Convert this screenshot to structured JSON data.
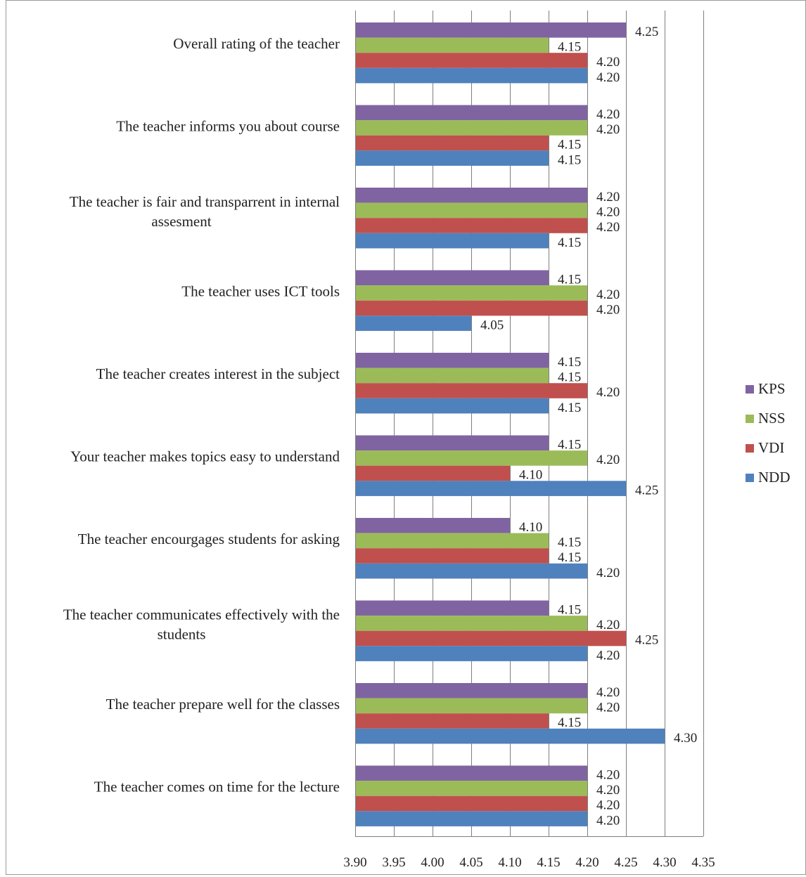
{
  "chart_data": {
    "type": "bar",
    "orientation": "horizontal",
    "categories": [
      "Overall rating of the teacher",
      "The teacher informs you about course",
      "The teacher is fair and transparrent in internal assesment",
      "The teacher uses ICT tools",
      "The teacher creates interest in the subject",
      "Your teacher makes topics easy to understand",
      "The teacher encourgages students for asking",
      "The teacher communicates effectively with the students",
      "The teacher prepare well for the classes",
      "The teacher comes on time for the lecture"
    ],
    "series": [
      {
        "name": "KPS",
        "color": "#8064a2",
        "values": [
          4.25,
          4.2,
          4.2,
          4.15,
          4.15,
          4.15,
          4.1,
          4.15,
          4.2,
          4.2
        ]
      },
      {
        "name": "NSS",
        "color": "#9bbb59",
        "values": [
          4.15,
          4.2,
          4.2,
          4.2,
          4.15,
          4.2,
          4.15,
          4.2,
          4.2,
          4.2
        ]
      },
      {
        "name": "VDI",
        "color": "#c0504d",
        "values": [
          4.2,
          4.15,
          4.2,
          4.2,
          4.2,
          4.1,
          4.15,
          4.25,
          4.15,
          4.2
        ]
      },
      {
        "name": "NDD",
        "color": "#4f81bd",
        "values": [
          4.2,
          4.15,
          4.15,
          4.05,
          4.15,
          4.25,
          4.2,
          4.2,
          4.3,
          4.2
        ]
      }
    ],
    "xlim": [
      3.9,
      4.35
    ],
    "xticks": [
      "3.90",
      "3.95",
      "4.00",
      "4.05",
      "4.10",
      "4.15",
      "4.20",
      "4.25",
      "4.30",
      "4.35"
    ],
    "data_labels": true,
    "grid": true,
    "legend_position": "right",
    "title": "",
    "xlabel": "",
    "ylabel": ""
  }
}
